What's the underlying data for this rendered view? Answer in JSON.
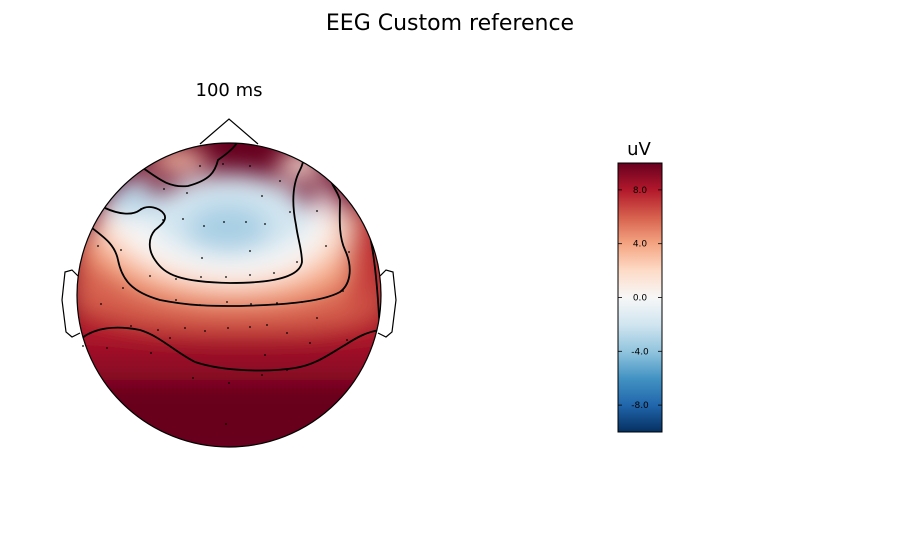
{
  "figure": {
    "title": "EEG Custom reference"
  },
  "chart_data": {
    "type": "heatmap",
    "subtype": "topographic-scalp-map",
    "title": "EEG Custom reference",
    "panel_title": "100 ms",
    "time_ms": 100,
    "colorbar": {
      "unit": "uV",
      "range": [
        -10,
        10
      ],
      "ticks": [
        8.0,
        4.0,
        0.0,
        -4.0,
        -8.0
      ],
      "tick_labels": [
        "8.0",
        "4.0",
        "0.0",
        "-4.0",
        "-8.0"
      ],
      "colormap": "RdBu_r",
      "colors": [
        "#053061",
        "#2166ac",
        "#4393c3",
        "#92c5de",
        "#d1e5f0",
        "#f7f7f7",
        "#fddbc7",
        "#f4a582",
        "#d6604d",
        "#b2182b",
        "#67001f"
      ]
    },
    "contour_levels": [
      -2,
      2,
      6
    ],
    "description_values": {
      "frontal_region_uV": -2,
      "central_ring_uV": 2,
      "posterior_region_uV": 10
    }
  },
  "colors": {
    "text": "#000000",
    "outline": "#000000",
    "sensor": "#000000"
  }
}
